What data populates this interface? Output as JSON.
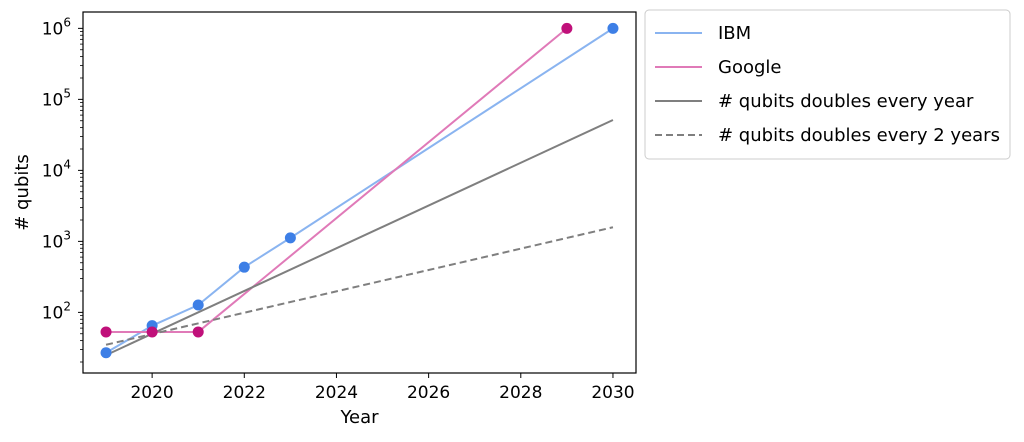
{
  "chart_data": {
    "type": "line",
    "xlabel": "Year",
    "ylabel": "# qubits",
    "xlim": [
      2018.5,
      2030.5
    ],
    "ylim": [
      14,
      1700000
    ],
    "yscale": "log",
    "grid": false,
    "legend_placement": "outside-top-right",
    "x_ticks": [
      2020,
      2022,
      2024,
      2026,
      2028,
      2030
    ],
    "x_tick_labels": [
      "2020",
      "2022",
      "2024",
      "2026",
      "2028",
      "2030"
    ],
    "y_ticks": [
      100,
      1000,
      10000,
      100000,
      1000000
    ],
    "y_tick_labels": [
      {
        "base": "10",
        "exp": "2"
      },
      {
        "base": "10",
        "exp": "3"
      },
      {
        "base": "10",
        "exp": "4"
      },
      {
        "base": "10",
        "exp": "5"
      },
      {
        "base": "10",
        "exp": "6"
      }
    ],
    "series": [
      {
        "name": "IBM",
        "color": "#8ab4f0",
        "marker_color": "#3d7fe6",
        "style": "solid",
        "markers": true,
        "x": [
          2019,
          2020,
          2021,
          2022,
          2023,
          2030
        ],
        "y": [
          27,
          65,
          127,
          433,
          1121,
          1000000
        ]
      },
      {
        "name": "Google",
        "color": "#e07ab8",
        "marker_color": "#c0107a",
        "style": "solid",
        "markers": true,
        "x": [
          2019,
          2020,
          2021,
          2029
        ],
        "y": [
          53,
          53,
          53,
          1000000
        ]
      },
      {
        "name": "# qubits doubles every year",
        "color": "#7f7f7f",
        "style": "solid",
        "markers": false,
        "x": [
          2019,
          2030
        ],
        "y": [
          25,
          51200
        ]
      },
      {
        "name": "# qubits doubles every 2 years",
        "color": "#7f7f7f",
        "style": "dashed",
        "markers": false,
        "x": [
          2019,
          2030
        ],
        "y": [
          35,
          1580
        ]
      }
    ]
  }
}
